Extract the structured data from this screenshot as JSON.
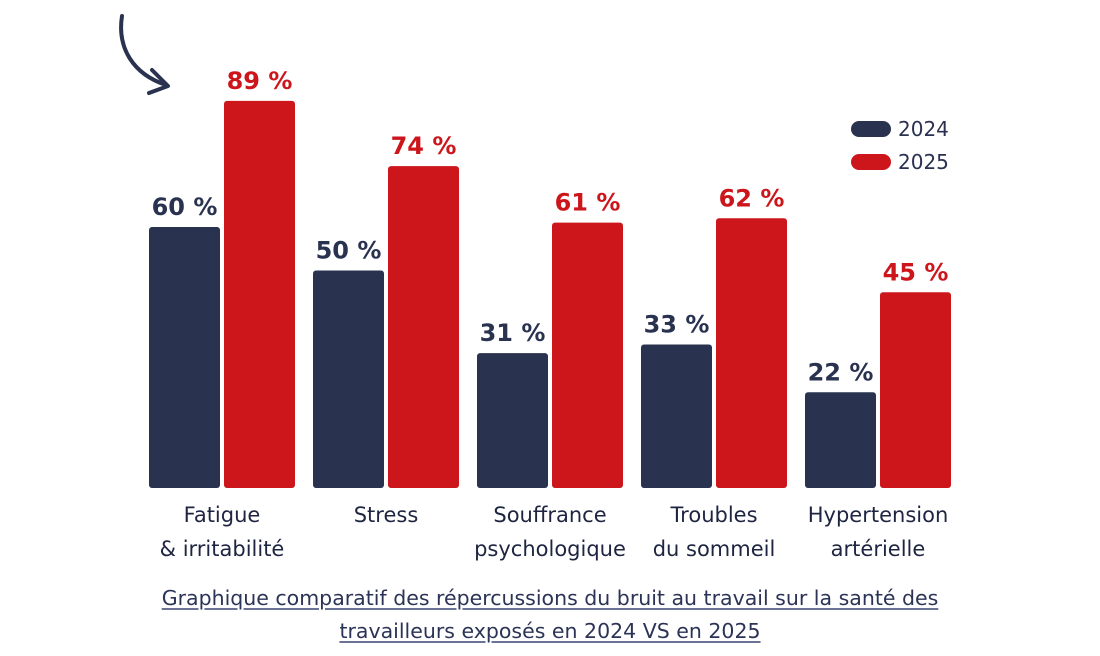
{
  "chart_data": {
    "type": "bar",
    "categories": [
      [
        "Fatigue",
        "& irritabilité"
      ],
      [
        "Stress"
      ],
      [
        "Souffrance",
        "psychologique"
      ],
      [
        "Troubles",
        "du sommeil"
      ],
      [
        "Hypertension",
        "artérielle"
      ]
    ],
    "series": [
      {
        "name": "2024",
        "color": "#29324f",
        "values": [
          60,
          50,
          31,
          33,
          22
        ],
        "labels": [
          "60 %",
          "50 %",
          "31 %",
          "33 %",
          "22 %"
        ]
      },
      {
        "name": "2025",
        "color": "#cc161b",
        "values": [
          89,
          74,
          61,
          62,
          45
        ],
        "labels": [
          "89 %",
          "74 %",
          "61 %",
          "62 %",
          "45 %"
        ]
      }
    ],
    "ylim": [
      0,
      100
    ],
    "legend_position": "top-right",
    "grid": false
  },
  "caption": {
    "line1": "Graphique comparatif des répercussions du bruit au travail sur la santé des",
    "line2": "travailleurs exposés en 2024 VS en 2025"
  },
  "arrow_icon": "curved-arrow-icon"
}
